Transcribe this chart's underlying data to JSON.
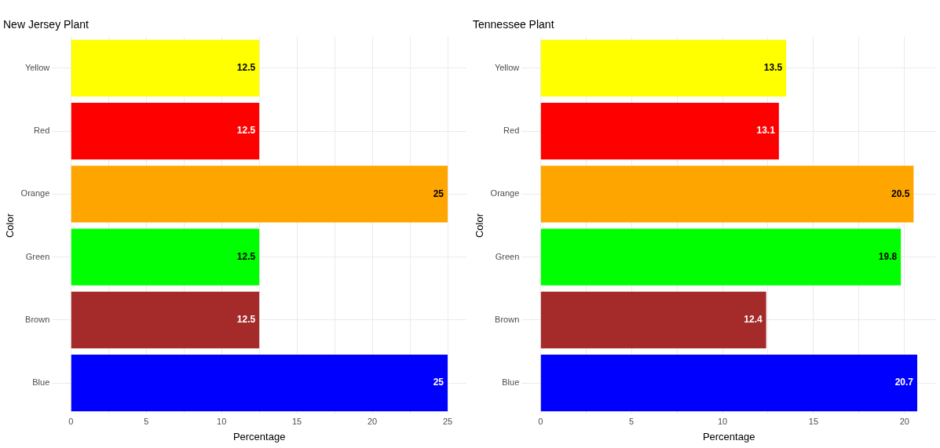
{
  "chart_data": [
    {
      "type": "bar",
      "orientation": "horizontal",
      "title": "New Jersey Plant",
      "xlabel": "Percentage",
      "ylabel": "Color",
      "categories": [
        "Yellow",
        "Red",
        "Orange",
        "Green",
        "Brown",
        "Blue"
      ],
      "values": [
        12.5,
        12.5,
        25,
        12.5,
        12.5,
        25
      ],
      "colors": [
        "#ffff00",
        "#ff0000",
        "#ffa500",
        "#00ff00",
        "#a52a2a",
        "#0000ff"
      ],
      "xlim": [
        -1.25,
        26.25
      ],
      "xticks": [
        0,
        {
          "value": 2.5,
          "label": null
        },
        5,
        {
          "value": 7.5,
          "label": null
        },
        10,
        {
          "value": 12.5,
          "label": null
        },
        15,
        {
          "value": 17.5,
          "label": null
        },
        20,
        {
          "value": 22.5,
          "label": null
        },
        25
      ],
      "grid": true,
      "data_labels": true
    },
    {
      "type": "bar",
      "orientation": "horizontal",
      "title": "Tennessee Plant",
      "xlabel": "Percentage",
      "ylabel": "Color",
      "categories": [
        "Yellow",
        "Red",
        "Orange",
        "Green",
        "Brown",
        "Blue"
      ],
      "values": [
        13.5,
        13.1,
        20.5,
        19.8,
        12.4,
        20.7
      ],
      "colors": [
        "#ffff00",
        "#ff0000",
        "#ffa500",
        "#00ff00",
        "#a52a2a",
        "#0000ff"
      ],
      "xlim": [
        -1.035,
        21.735
      ],
      "xticks": [
        0,
        {
          "value": 2.5,
          "label": null
        },
        5,
        {
          "value": 7.5,
          "label": null
        },
        10,
        {
          "value": 12.5,
          "label": null
        },
        15,
        {
          "value": 17.5,
          "label": null
        },
        20
      ],
      "grid": true,
      "data_labels": true
    }
  ]
}
